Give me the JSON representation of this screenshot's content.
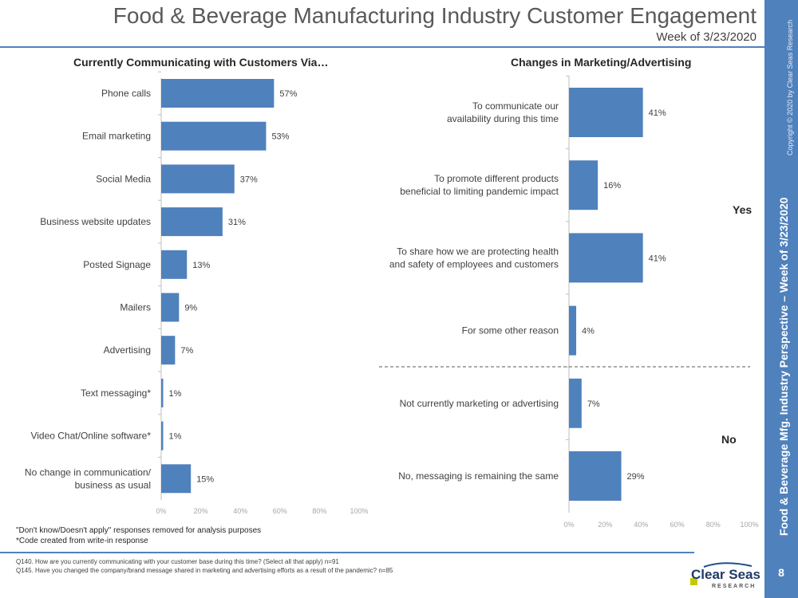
{
  "header": {
    "title": "Food & Beverage Manufacturing Industry Customer Engagement",
    "subtitle": "Week of 3/23/2020"
  },
  "sidebar": {
    "copyright": "Copyright © 2020 by Clear Seas Research",
    "title": "Food & Beverage Mfg.  Industry Perspective – Week of 3/23/2020",
    "page_number": "8"
  },
  "logo": {
    "text": "Clear Seas",
    "subtext": "RESEARCH"
  },
  "colors": {
    "bar": "#4f81bd",
    "accent": "#4f81bd"
  },
  "notes": [
    "\"Don't know/Doesn't apply\" responses removed for analysis purposes",
    "*Code created from write-in response"
  ],
  "questions": [
    "Q140.  How are you currently communicating with your customer base during this time?  (Select all that apply) n=91",
    "Q145.  Have you changed the company/brand message shared in marketing and advertising efforts as a result of the pandemic? n=85"
  ],
  "chart_data": [
    {
      "type": "bar",
      "orientation": "horizontal",
      "title": "Currently Communicating with Customers Via…",
      "categories": [
        "Phone calls",
        "Email marketing",
        "Social Media",
        "Business website updates",
        "Posted Signage",
        "Mailers",
        "Advertising",
        "Text messaging*",
        "Video Chat/Online software*",
        "No change in communication/\nbusiness as usual"
      ],
      "values": [
        57,
        53,
        37,
        31,
        13,
        9,
        7,
        1,
        1,
        15
      ],
      "data_labels": [
        "57%",
        "53%",
        "37%",
        "31%",
        "13%",
        "9%",
        "7%",
        "1%",
        "1%",
        "15%"
      ],
      "xlim": [
        0,
        100
      ],
      "xticks": [
        "0%",
        "20%",
        "40%",
        "60%",
        "80%",
        "100%"
      ],
      "grid": false
    },
    {
      "type": "bar",
      "orientation": "horizontal",
      "title": "Changes in Marketing/Advertising",
      "categories": [
        "To communicate our\navailability during this time",
        "To promote different products\nbeneficial to limiting pandemic impact",
        "To share how we are protecting health\nand safety of employees and customers",
        "For some other reason",
        "Not currently marketing or advertising",
        "No, messaging is remaining the same"
      ],
      "values": [
        41,
        16,
        41,
        4,
        7,
        29
      ],
      "data_labels": [
        "41%",
        "16%",
        "41%",
        "4%",
        "7%",
        "29%"
      ],
      "groups": [
        {
          "label": "Yes",
          "count": 4
        },
        {
          "label": "No",
          "count": 2
        }
      ],
      "xlim": [
        0,
        100
      ],
      "xticks": [
        "0%",
        "20%",
        "40%",
        "60%",
        "80%",
        "100%"
      ],
      "grid": false
    }
  ]
}
